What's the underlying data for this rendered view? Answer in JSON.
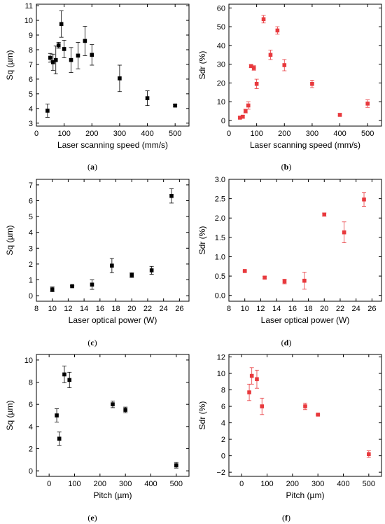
{
  "chart_data": [
    {
      "id": "a",
      "type": "scatter",
      "caption": "a",
      "marker_color": "#000000",
      "xlabel": "Laser scanning speed (mm/s)",
      "ylabel": "Sq (µm)",
      "xlim": [
        0,
        550
      ],
      "ylim": [
        2.8,
        11.1
      ],
      "xticks": [
        0,
        100,
        200,
        300,
        400,
        500
      ],
      "yticks": [
        3,
        4,
        5,
        6,
        7,
        8,
        9,
        10,
        11
      ],
      "x": [
        40,
        50,
        60,
        70,
        80,
        90,
        100,
        125,
        150,
        175,
        200,
        300,
        400,
        500
      ],
      "y": [
        3.85,
        7.45,
        7.15,
        7.3,
        8.3,
        9.75,
        8.05,
        7.3,
        7.6,
        8.6,
        7.65,
        6.05,
        4.7,
        4.2
      ],
      "err": [
        0.45,
        0.3,
        0.55,
        0.95,
        0.2,
        0.9,
        0.6,
        0.85,
        0.9,
        1.0,
        0.7,
        0.9,
        0.5,
        0.05
      ]
    },
    {
      "id": "b",
      "type": "scatter",
      "caption": "b",
      "marker_color": "#e8393d",
      "xlabel": "Laser scanning speed (mm/s)",
      "ylabel": "Sdr (%)",
      "xlim": [
        0,
        550
      ],
      "ylim": [
        -3,
        62
      ],
      "xticks": [
        0,
        100,
        200,
        300,
        400,
        500
      ],
      "yticks": [
        0,
        10,
        20,
        30,
        40,
        50,
        60
      ],
      "x": [
        40,
        50,
        60,
        70,
        80,
        90,
        100,
        125,
        150,
        175,
        200,
        300,
        400,
        500
      ],
      "y": [
        1.5,
        2.0,
        5.0,
        8.0,
        29.0,
        28.0,
        19.5,
        54.0,
        35.0,
        48.0,
        29.5,
        19.5,
        3.0,
        9.0
      ],
      "err": [
        0.5,
        0.7,
        1.0,
        2.0,
        0.8,
        1.2,
        2.5,
        2.0,
        2.5,
        2.0,
        3.0,
        2.0,
        0.5,
        2.0
      ]
    },
    {
      "id": "c",
      "type": "scatter",
      "caption": "c",
      "marker_color": "#000000",
      "xlabel": "Laser optical power (W)",
      "ylabel": "Sq (µm)",
      "xlim": [
        8,
        27.2
      ],
      "ylim": [
        -0.35,
        7.35
      ],
      "xticks": [
        8,
        10,
        12,
        14,
        16,
        18,
        20,
        22,
        24,
        26
      ],
      "yticks": [
        0,
        1,
        2,
        3,
        4,
        5,
        6,
        7
      ],
      "x": [
        10,
        12.5,
        15,
        17.5,
        20,
        22.5,
        25
      ],
      "y": [
        0.4,
        0.6,
        0.7,
        1.9,
        1.3,
        1.6,
        6.3
      ],
      "err": [
        0.15,
        0.05,
        0.3,
        0.45,
        0.15,
        0.25,
        0.45
      ]
    },
    {
      "id": "d",
      "type": "scatter",
      "caption": "d",
      "marker_color": "#e8393d",
      "xlabel": "Laser optical power (W)",
      "ylabel": "Sdr (%)",
      "xlim": [
        8,
        27.2
      ],
      "ylim": [
        -0.15,
        3.0
      ],
      "xticks": [
        8,
        10,
        12,
        14,
        16,
        18,
        20,
        22,
        24,
        26
      ],
      "yticks": [
        0.0,
        0.5,
        1.0,
        1.5,
        2.0,
        2.5,
        3.0
      ],
      "x": [
        10,
        12.5,
        15,
        17.5,
        20,
        22.5,
        25
      ],
      "y": [
        0.63,
        0.46,
        0.36,
        0.38,
        2.09,
        1.63,
        2.48
      ],
      "err": [
        0.02,
        0.03,
        0.06,
        0.22,
        0.04,
        0.27,
        0.18
      ]
    },
    {
      "id": "e",
      "type": "scatter",
      "caption": "e",
      "marker_color": "#000000",
      "xlabel": "Pitch (µm)",
      "ylabel": "Sq (µm)",
      "xlim": [
        -50,
        550
      ],
      "ylim": [
        -0.5,
        10.5
      ],
      "xticks": [
        0,
        100,
        200,
        300,
        400,
        500
      ],
      "yticks": [
        0,
        2,
        4,
        6,
        8,
        10
      ],
      "x": [
        30,
        40,
        60,
        80,
        250,
        300,
        500
      ],
      "y": [
        5.0,
        2.9,
        8.7,
        8.2,
        6.0,
        5.5,
        0.5
      ],
      "err": [
        0.6,
        0.6,
        0.75,
        0.7,
        0.3,
        0.25,
        0.25
      ]
    },
    {
      "id": "f",
      "type": "scatter",
      "caption": "f",
      "marker_color": "#e8393d",
      "xlabel": "Pitch (µm)",
      "ylabel": "Sdr (%)",
      "xlim": [
        -50,
        550
      ],
      "ylim": [
        -2.5,
        12.3
      ],
      "xticks": [
        0,
        100,
        200,
        300,
        400,
        500
      ],
      "yticks": [
        -2,
        0,
        2,
        4,
        6,
        8,
        10,
        12
      ],
      "x": [
        30,
        40,
        60,
        80,
        250,
        300,
        500
      ],
      "y": [
        7.7,
        9.7,
        9.3,
        6.0,
        6.0,
        5.0,
        0.2
      ],
      "err": [
        1.0,
        1.0,
        1.1,
        1.0,
        0.4,
        0.05,
        0.4
      ]
    }
  ]
}
